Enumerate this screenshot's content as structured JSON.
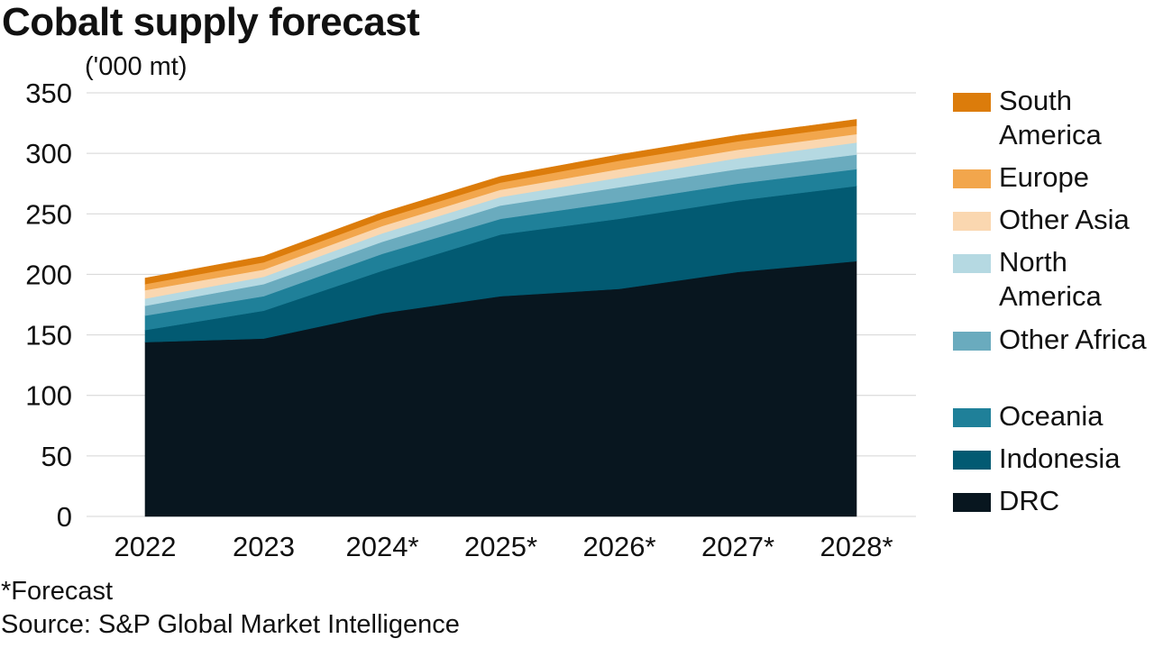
{
  "chart_data": {
    "type": "area",
    "title": "Cobalt supply forecast",
    "unit_label": "('000 mt)",
    "categories": [
      "2022",
      "2023",
      "2024*",
      "2025*",
      "2026*",
      "2027*",
      "2028*"
    ],
    "ylim": [
      0,
      350
    ],
    "yticks": [
      0,
      50,
      100,
      150,
      200,
      250,
      300,
      350
    ],
    "grid": true,
    "stacked": true,
    "series": [
      {
        "name": "DRC",
        "color": "#08161f",
        "values": [
          144,
          147,
          168,
          182,
          188,
          202,
          211
        ]
      },
      {
        "name": "Indonesia",
        "color": "#025a72",
        "values": [
          10,
          23,
          35,
          51,
          58,
          59,
          62
        ]
      },
      {
        "name": "Oceania",
        "color": "#1f8099",
        "values": [
          12,
          12,
          14,
          13,
          14,
          14,
          14
        ]
      },
      {
        "name": "Other Africa",
        "color": "#6aabbe",
        "values": [
          8,
          10,
          10,
          11,
          12,
          12,
          12
        ]
      },
      {
        "name": "North America",
        "color": "#b5d9e2",
        "values": [
          6,
          6,
          7,
          7,
          8,
          9,
          10
        ]
      },
      {
        "name": "Other Asia",
        "color": "#fad7b0",
        "values": [
          7,
          6,
          6,
          6,
          7,
          7,
          7
        ]
      },
      {
        "name": "Europe",
        "color": "#f2a64c",
        "values": [
          5,
          6,
          6,
          6,
          7,
          7,
          7
        ]
      },
      {
        "name": "South America",
        "color": "#dc7c0b",
        "values": [
          5,
          5,
          5,
          5,
          5,
          5,
          5
        ]
      }
    ],
    "legend_position": "right",
    "legend_order": [
      "South America",
      "Europe",
      "Other Asia",
      "North America",
      "Other Africa",
      "Oceania",
      "Indonesia",
      "DRC"
    ]
  },
  "legend": {
    "items": [
      {
        "label": "South America",
        "color": "#dc7c0b"
      },
      {
        "label": "Europe",
        "color": "#f2a64c"
      },
      {
        "label": "Other Asia",
        "color": "#fad7b0"
      },
      {
        "label": "North America",
        "color": "#b5d9e2"
      },
      {
        "label": "Other Africa",
        "color": "#6aabbe"
      },
      {
        "label": "Oceania",
        "color": "#1f8099"
      },
      {
        "label": "Indonesia",
        "color": "#025a72"
      },
      {
        "label": "DRC",
        "color": "#08161f"
      }
    ]
  },
  "footnote": "*Forecast",
  "source": "Source: S&P Global Market Intelligence"
}
